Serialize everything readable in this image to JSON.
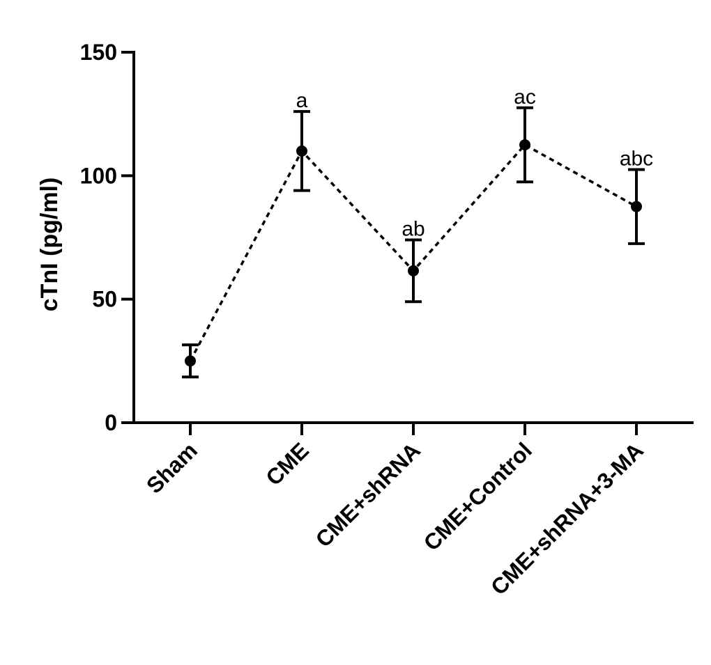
{
  "chart_data": {
    "type": "line",
    "title": "",
    "xlabel": "",
    "ylabel": "cTnI (pg/ml)",
    "ylim": [
      0,
      150
    ],
    "yticks": [
      0,
      50,
      100,
      150
    ],
    "ytick_labels": [
      "0",
      "50",
      "100",
      "150"
    ],
    "categories": [
      "Sham",
      "CME",
      "CME+shRNA",
      "CME+Control",
      "CME+shRNA+3-MA"
    ],
    "series": [
      {
        "name": "cTnI",
        "values": [
          25,
          110,
          61.5,
          112.5,
          87.5
        ],
        "error": [
          6.5,
          16,
          12.5,
          15,
          15
        ],
        "line_style": "dashed",
        "marker": "circle"
      }
    ],
    "annotations": [
      "",
      "a",
      "ab",
      "ac",
      "abc"
    ],
    "grid": false
  }
}
